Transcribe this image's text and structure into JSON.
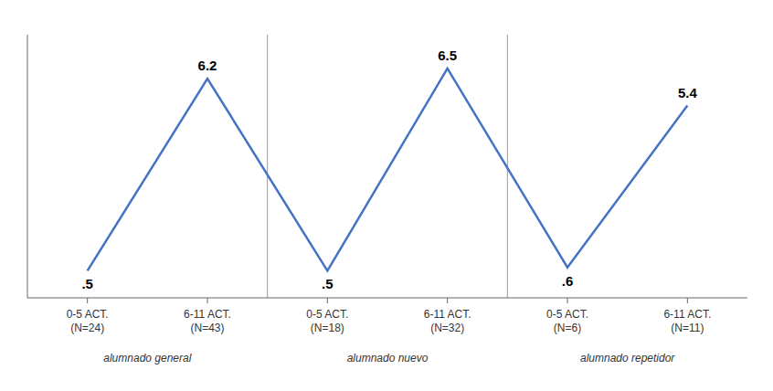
{
  "chart_data": {
    "type": "line",
    "categories": [
      "0-5 ACT.\n(N=24)",
      "6-11 ACT.\n(N=43)",
      "0-5 ACT.\n(N=18)",
      "6-11 ACT.\n(N=32)",
      "0-5 ACT.\n(N=6)",
      "6-11 ACT.\n(N=11)"
    ],
    "values": [
      0.5,
      6.2,
      0.5,
      6.5,
      0.6,
      5.4
    ],
    "value_labels": [
      ".5",
      "6.2",
      ".5",
      "6.5",
      ".6",
      "5.4"
    ],
    "groups": [
      "alumnado general",
      "alumnado nuevo",
      "alumnado repetidor"
    ],
    "color": "#4472C4",
    "ylim": [
      -0.3,
      7.5
    ],
    "yticks": [],
    "data_labels": true,
    "tick_labels": "x"
  }
}
